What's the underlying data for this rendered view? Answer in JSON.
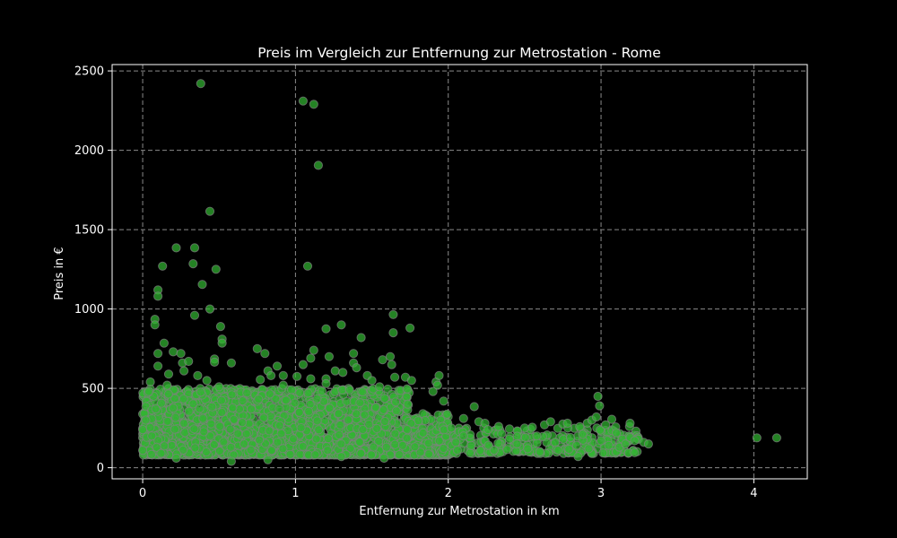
{
  "chart_data": {
    "type": "scatter",
    "title": "Preis im Vergleich zur Entfernung zur Metrostation - Rome",
    "xlabel": "Entfernung zur Metrostation in km",
    "ylabel": "Preis in €",
    "xlim": [
      -0.2,
      4.35
    ],
    "ylim": [
      -70,
      2540
    ],
    "xticks": [
      0,
      1,
      2,
      3,
      4
    ],
    "yticks": [
      0,
      500,
      1000,
      1500,
      2000,
      2500
    ],
    "grid": true,
    "colors": {
      "marker_fill": "#32b432",
      "marker_edge": "#808080",
      "background": "#000000"
    },
    "series": [
      {
        "points": [
          [
            0.38,
            2420
          ],
          [
            1.05,
            2310
          ],
          [
            1.12,
            2290
          ],
          [
            1.15,
            1905
          ],
          [
            0.44,
            1615
          ],
          [
            0.22,
            1385
          ],
          [
            0.34,
            1385
          ],
          [
            0.13,
            1270
          ],
          [
            0.33,
            1285
          ],
          [
            0.48,
            1250
          ],
          [
            1.08,
            1270
          ],
          [
            0.39,
            1155
          ],
          [
            0.1,
            1120
          ],
          [
            0.1,
            1080
          ],
          [
            0.44,
            1000
          ],
          [
            0.34,
            960
          ],
          [
            0.08,
            935
          ],
          [
            0.08,
            900
          ],
          [
            0.51,
            890
          ],
          [
            1.3,
            900
          ],
          [
            1.2,
            875
          ],
          [
            1.64,
            965
          ],
          [
            1.64,
            850
          ],
          [
            1.75,
            880
          ],
          [
            1.43,
            820
          ],
          [
            0.52,
            810
          ],
          [
            0.52,
            785
          ],
          [
            0.14,
            785
          ],
          [
            0.75,
            750
          ],
          [
            1.12,
            740
          ],
          [
            0.2,
            730
          ],
          [
            0.25,
            720
          ],
          [
            0.1,
            720
          ],
          [
            0.8,
            720
          ],
          [
            1.38,
            720
          ],
          [
            1.22,
            700
          ],
          [
            1.1,
            690
          ],
          [
            0.47,
            685
          ],
          [
            0.47,
            665
          ],
          [
            0.58,
            660
          ],
          [
            0.26,
            660
          ],
          [
            0.3,
            670
          ],
          [
            1.05,
            650
          ],
          [
            1.38,
            660
          ],
          [
            1.62,
            700
          ],
          [
            1.57,
            680
          ],
          [
            1.63,
            650
          ],
          [
            0.1,
            640
          ],
          [
            0.88,
            640
          ],
          [
            1.26,
            610
          ],
          [
            1.4,
            630
          ],
          [
            1.2,
            560
          ],
          [
            0.17,
            590
          ],
          [
            0.27,
            610
          ],
          [
            0.36,
            580
          ],
          [
            0.82,
            610
          ],
          [
            0.84,
            580
          ],
          [
            0.92,
            580
          ],
          [
            1.01,
            575
          ],
          [
            1.31,
            600
          ],
          [
            1.47,
            580
          ],
          [
            1.65,
            570
          ],
          [
            1.72,
            570
          ],
          [
            1.76,
            550
          ],
          [
            1.92,
            540
          ],
          [
            1.94,
            580
          ],
          [
            1.93,
            520
          ],
          [
            1.9,
            480
          ],
          [
            1.97,
            420
          ],
          [
            0.05,
            540
          ],
          [
            0.42,
            550
          ],
          [
            0.77,
            555
          ],
          [
            1.1,
            560
          ],
          [
            1.5,
            550
          ],
          [
            0.04,
            480
          ],
          [
            0.16,
            520
          ],
          [
            0.5,
            510
          ],
          [
            0.92,
            520
          ],
          [
            1.2,
            530
          ],
          [
            1.55,
            510
          ],
          [
            2.17,
            385
          ],
          [
            2.1,
            310
          ],
          [
            2.2,
            290
          ],
          [
            2.24,
            280
          ],
          [
            2.33,
            260
          ],
          [
            2.5,
            250
          ],
          [
            2.55,
            255
          ],
          [
            2.63,
            270
          ],
          [
            2.75,
            275
          ],
          [
            2.67,
            290
          ],
          [
            2.78,
            280
          ],
          [
            2.91,
            280
          ],
          [
            2.94,
            300
          ],
          [
            2.97,
            320
          ],
          [
            2.98,
            450
          ],
          [
            2.99,
            390
          ],
          [
            3.03,
            270
          ],
          [
            3.07,
            305
          ],
          [
            3.1,
            220
          ],
          [
            3.14,
            180
          ],
          [
            3.19,
            280
          ],
          [
            3.19,
            190
          ],
          [
            3.22,
            170
          ],
          [
            3.22,
            95
          ],
          [
            3.28,
            160
          ],
          [
            3.31,
            150
          ],
          [
            3.08,
            95
          ],
          [
            3.1,
            100
          ],
          [
            2.94,
            90
          ],
          [
            2.85,
            70
          ],
          [
            4.02,
            188
          ],
          [
            4.15,
            188
          ],
          [
            2.35,
            215
          ],
          [
            2.4,
            180
          ],
          [
            2.45,
            150
          ],
          [
            2.52,
            120
          ],
          [
            2.58,
            200
          ],
          [
            2.6,
            100
          ],
          [
            2.7,
            160
          ],
          [
            2.72,
            110
          ],
          [
            2.8,
            190
          ],
          [
            2.84,
            140
          ],
          [
            2.88,
            210
          ],
          [
            2.92,
            120
          ],
          [
            3.0,
            170
          ],
          [
            3.05,
            140
          ],
          [
            3.12,
            130
          ],
          [
            3.16,
            150
          ],
          [
            2.3,
            110
          ],
          [
            2.26,
            240
          ],
          [
            2.15,
            140
          ],
          [
            2.1,
            200
          ],
          [
            2.05,
            160
          ],
          [
            2.02,
            250
          ],
          [
            2.06,
            110
          ],
          [
            0.58,
            40
          ],
          [
            0.82,
            50
          ],
          [
            1.58,
            60
          ],
          [
            0.22,
            60
          ],
          [
            1.3,
            70
          ],
          [
            0.12,
            90
          ],
          [
            0.0,
            110
          ],
          [
            0.0,
            240
          ],
          [
            0.02,
            300
          ],
          [
            0.06,
            200
          ]
        ]
      }
    ]
  }
}
